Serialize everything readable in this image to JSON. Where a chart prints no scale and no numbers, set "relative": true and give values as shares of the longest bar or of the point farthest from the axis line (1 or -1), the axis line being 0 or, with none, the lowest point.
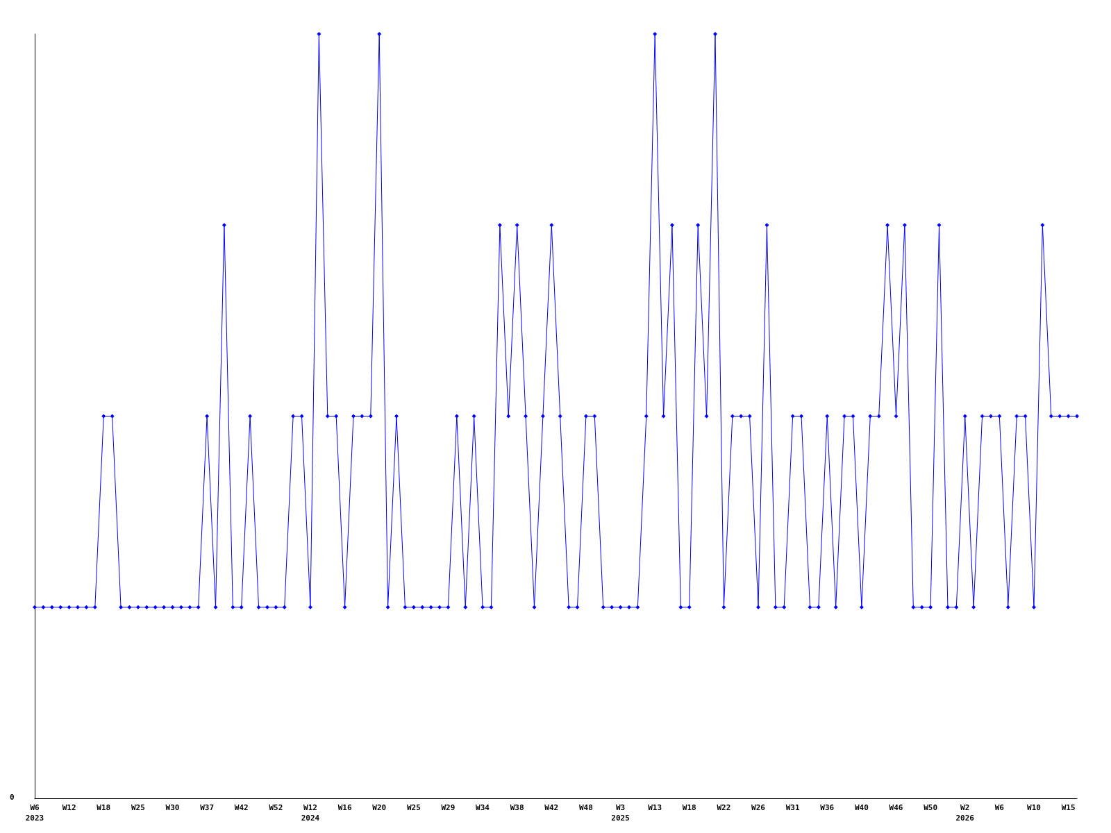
{
  "chart_data": {
    "type": "line",
    "relative": true,
    "color": "#0000ff",
    "marker": "diamond",
    "line_style": "solid",
    "annotations": [
      "0"
    ],
    "categories": [
      "W6\n2023",
      null,
      null,
      null,
      "W12",
      null,
      null,
      null,
      "W18",
      null,
      null,
      null,
      "W25",
      null,
      null,
      null,
      "W30",
      null,
      null,
      null,
      "W37",
      null,
      null,
      null,
      "W42",
      null,
      null,
      null,
      "W52",
      null,
      null,
      null,
      "W12\n2024",
      null,
      null,
      null,
      "W16",
      null,
      null,
      null,
      "W20",
      null,
      null,
      null,
      "W25",
      null,
      null,
      null,
      "W29",
      null,
      null,
      null,
      "W34",
      null,
      null,
      null,
      "W38",
      null,
      null,
      null,
      "W42",
      null,
      null,
      null,
      "W48",
      null,
      null,
      null,
      "W3\n2025",
      null,
      null,
      null,
      "W13",
      null,
      null,
      null,
      "W18",
      null,
      null,
      null,
      "W22",
      null,
      null,
      null,
      "W26",
      null,
      null,
      null,
      "W31",
      null,
      null,
      null,
      "W36",
      null,
      null,
      null,
      "W40",
      null,
      null,
      null,
      "W46",
      null,
      null,
      null,
      "W50",
      null,
      null,
      null,
      "W2\n2026",
      null,
      null,
      null,
      "W6",
      null,
      null,
      null,
      "W10",
      null,
      null,
      null,
      "W15",
      null
    ],
    "values": [
      0.25,
      0.25,
      0.25,
      0.25,
      0.25,
      0.25,
      0.25,
      0.25,
      0.5,
      0.5,
      0.25,
      0.25,
      0.25,
      0.25,
      0.25,
      0.25,
      0.25,
      0.25,
      0.25,
      0.25,
      0.5,
      0.25,
      0.75,
      0.25,
      0.25,
      0.5,
      0.25,
      0.25,
      0.25,
      0.25,
      0.5,
      0.5,
      0.25,
      1,
      0.5,
      0.5,
      0.25,
      0.5,
      0.5,
      0.5,
      1,
      0.25,
      0.5,
      0.25,
      0.25,
      0.25,
      0.25,
      0.25,
      0.25,
      0.5,
      0.25,
      0.5,
      0.25,
      0.25,
      0.75,
      0.5,
      0.75,
      0.5,
      0.25,
      0.5,
      0.75,
      0.5,
      0.25,
      0.25,
      0.5,
      0.5,
      0.25,
      0.25,
      0.25,
      0.25,
      0.25,
      0.5,
      1,
      0.5,
      0.75,
      0.25,
      0.25,
      0.75,
      0.5,
      1,
      0.25,
      0.5,
      0.5,
      0.5,
      0.25,
      0.75,
      0.25,
      0.25,
      0.5,
      0.5,
      0.25,
      0.25,
      0.5,
      0.25,
      0.5,
      0.5,
      0.25,
      0.5,
      0.5,
      0.75,
      0.5,
      0.75,
      0.25,
      0.25,
      0.25,
      0.75,
      0.25,
      0.25,
      0.5,
      0.25,
      0.5,
      0.5,
      0.5,
      0.25,
      0.5,
      0.5,
      0.25,
      0.75,
      0.5,
      0.5,
      0.5,
      0.5
    ]
  }
}
